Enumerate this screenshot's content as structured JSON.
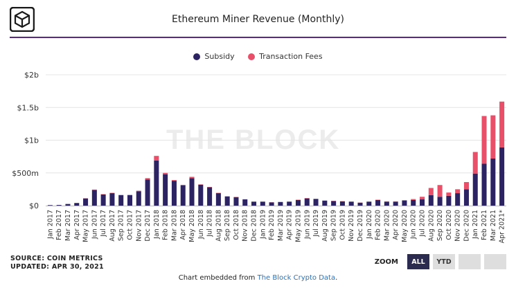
{
  "header": {
    "title": "Ethereum Miner Revenue (Monthly)"
  },
  "colors": {
    "subsidy": "#2c2462",
    "fees": "#e8506a",
    "accent": "#5a2a82",
    "grid": "#e4e4e4"
  },
  "legend": {
    "subsidy": "Subsidy",
    "fees": "Transaction Fees"
  },
  "watermark": "THE BLOCK",
  "source": {
    "line1": "SOURCE: COIN METRICS",
    "line2": "UPDATED: APR 30, 2021"
  },
  "zoom": {
    "label": "ZOOM",
    "all": "ALL",
    "ytd": "YTD",
    "extra1": "",
    "extra2": ""
  },
  "footer": {
    "prefix": "Chart embedded from ",
    "link": "The Block Crypto Data",
    "suffix": "."
  },
  "chart_data": {
    "type": "bar",
    "stacked": true,
    "title": "Ethereum Miner Revenue (Monthly)",
    "ylim": [
      0,
      2000000000
    ],
    "yticks": [
      {
        "value": 0,
        "label": "$0"
      },
      {
        "value": 500000000,
        "label": "$500m"
      },
      {
        "value": 1000000000,
        "label": "$1b"
      },
      {
        "value": 1500000000,
        "label": "$1.5b"
      },
      {
        "value": 2000000000,
        "label": "$2b"
      }
    ],
    "grid": true,
    "legend_position": "top-center",
    "categories": [
      "Jan 2017",
      "Feb 2017",
      "Mar 2017",
      "Apr 2017",
      "May 2017",
      "Jun 2017",
      "Jul 2017",
      "Aug 2017",
      "Sep 2017",
      "Oct 2017",
      "Nov 2017",
      "Dec 2017",
      "Jan 2018",
      "Feb 2018",
      "Mar 2018",
      "Apr 2018",
      "May 2018",
      "Jun 2018",
      "Jul 2018",
      "Aug 2018",
      "Sep 2018",
      "Oct 2018",
      "Nov 2018",
      "Dec 2018",
      "Jan 2019",
      "Feb 2019",
      "Mar 2019",
      "Apr 2019",
      "May 2019",
      "Jun 2019",
      "Jul 2019",
      "Aug 2019",
      "Sep 2019",
      "Oct 2019",
      "Nov 2019",
      "Dec 2019",
      "Jan 2020",
      "Feb 2020",
      "Mar 2020",
      "Apr 2020",
      "May 2020",
      "Jun 2020",
      "Jul 2020",
      "Aug 2020",
      "Sep 2020",
      "Oct 2020",
      "Nov 2020",
      "Dec 2020",
      "Jan 2021",
      "Feb 2021",
      "Mar 2021",
      "Apr 2021*"
    ],
    "series": [
      {
        "name": "Subsidy",
        "values": [
          8000000,
          10000000,
          25000000,
          40000000,
          110000000,
          240000000,
          170000000,
          190000000,
          160000000,
          160000000,
          220000000,
          400000000,
          690000000,
          480000000,
          380000000,
          310000000,
          420000000,
          320000000,
          280000000,
          190000000,
          140000000,
          130000000,
          95000000,
          60000000,
          60000000,
          50000000,
          55000000,
          60000000,
          85000000,
          110000000,
          100000000,
          75000000,
          70000000,
          65000000,
          60000000,
          45000000,
          60000000,
          85000000,
          60000000,
          60000000,
          75000000,
          85000000,
          95000000,
          160000000,
          135000000,
          150000000,
          190000000,
          250000000,
          490000000,
          640000000,
          720000000,
          890000000
        ]
      },
      {
        "name": "Transaction Fees",
        "values": [
          0,
          0,
          0,
          0,
          2000000,
          5000000,
          5000000,
          5000000,
          4000000,
          5000000,
          8000000,
          20000000,
          70000000,
          20000000,
          10000000,
          8000000,
          20000000,
          5000000,
          5000000,
          5000000,
          4000000,
          3000000,
          2000000,
          2000000,
          2000000,
          2000000,
          2000000,
          3000000,
          5000000,
          5000000,
          5000000,
          4000000,
          3000000,
          3000000,
          3000000,
          2000000,
          3000000,
          5000000,
          5000000,
          5000000,
          10000000,
          15000000,
          40000000,
          110000000,
          180000000,
          50000000,
          60000000,
          110000000,
          330000000,
          730000000,
          660000000,
          700000000
        ]
      }
    ]
  }
}
